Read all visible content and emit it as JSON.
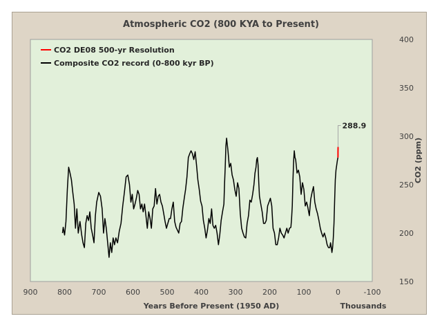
{
  "chart_data": {
    "type": "line",
    "title": "Atmospheric CO2 (800 KYA to Present)",
    "xlabel": "Years Before Present (1950 AD)",
    "x_unit_note": "Thousands",
    "ylabel": "CO2 (ppm)",
    "xlim": [
      900,
      -100
    ],
    "ylim": [
      150,
      400
    ],
    "x_ticks": [
      "900",
      "800",
      "700",
      "600",
      "500",
      "400",
      "300",
      "200",
      "100",
      "0",
      "-100"
    ],
    "y_ticks": [
      "150",
      "200",
      "250",
      "300",
      "350",
      "400"
    ],
    "annotation": {
      "label": "288.9",
      "x": 0,
      "y": 288.9
    },
    "series": [
      {
        "name": "CO2 DE08 500-yr Resolution",
        "color": "#ff0000",
        "x": [
          0.4,
          0.3,
          0.2,
          0.1,
          0.0
        ],
        "y": [
          278,
          280,
          284,
          288,
          288.9
        ]
      },
      {
        "name": "Composite CO2 record (0-800 kyr BP)",
        "color": "#000000",
        "x": [
          806,
          804,
          800,
          796,
          792,
          788,
          784,
          780,
          776,
          772,
          768,
          764,
          760,
          755,
          750,
          746,
          742,
          738,
          734,
          730,
          726,
          722,
          718,
          714,
          710,
          706,
          700,
          695,
          690,
          686,
          682,
          678,
          674,
          670,
          666,
          662,
          658,
          654,
          650,
          645,
          640,
          635,
          630,
          625,
          620,
          615,
          610,
          606,
          602,
          598,
          594,
          590,
          586,
          582,
          578,
          574,
          570,
          566,
          562,
          558,
          554,
          550,
          546,
          542,
          538,
          534,
          530,
          526,
          522,
          518,
          514,
          510,
          506,
          502,
          498,
          494,
          490,
          486,
          482,
          478,
          474,
          470,
          466,
          462,
          458,
          454,
          450,
          446,
          442,
          438,
          434,
          430,
          426,
          422,
          418,
          414,
          410,
          406,
          402,
          398,
          394,
          390,
          386,
          382,
          378,
          374,
          370,
          366,
          362,
          358,
          354,
          350,
          346,
          342,
          338,
          334,
          332,
          330,
          328,
          326,
          322,
          318,
          314,
          310,
          306,
          302,
          298,
          294,
          290,
          286,
          282,
          278,
          274,
          270,
          266,
          262,
          258,
          254,
          250,
          246,
          243,
          240,
          238,
          236,
          234,
          232,
          230,
          226,
          222,
          218,
          214,
          210,
          206,
          202,
          198,
          194,
          190,
          186,
          182,
          178,
          174,
          170,
          166,
          162,
          158,
          154,
          150,
          146,
          142,
          138,
          136,
          134,
          132,
          130,
          128,
          126,
          124,
          120,
          116,
          112,
          108,
          104,
          100,
          96,
          92,
          88,
          84,
          80,
          76,
          72,
          68,
          64,
          60,
          56,
          52,
          48,
          44,
          40,
          36,
          32,
          28,
          24,
          22,
          20,
          18,
          16,
          14,
          12,
          10,
          8,
          6,
          4,
          2,
          0.5
        ],
        "y": [
          200,
          206,
          198,
          212,
          245,
          268,
          262,
          255,
          242,
          230,
          205,
          225,
          200,
          212,
          198,
          190,
          185,
          210,
          218,
          213,
          222,
          205,
          198,
          190,
          218,
          232,
          242,
          238,
          225,
          200,
          215,
          205,
          190,
          175,
          190,
          180,
          195,
          188,
          195,
          190,
          202,
          210,
          228,
          242,
          258,
          260,
          250,
          232,
          240,
          225,
          230,
          236,
          244,
          240,
          225,
          230,
          222,
          230,
          218,
          205,
          222,
          215,
          205,
          225,
          228,
          246,
          230,
          238,
          240,
          232,
          228,
          220,
          212,
          205,
          210,
          215,
          215,
          225,
          232,
          212,
          206,
          203,
          200,
          210,
          212,
          226,
          236,
          245,
          258,
          278,
          282,
          285,
          282,
          276,
          284,
          270,
          255,
          245,
          233,
          228,
          213,
          205,
          195,
          203,
          215,
          210,
          225,
          208,
          205,
          208,
          200,
          188,
          198,
          213,
          222,
          230,
          252,
          268,
          290,
          298,
          285,
          268,
          272,
          260,
          255,
          245,
          238,
          252,
          246,
          220,
          205,
          200,
          196,
          195,
          210,
          218,
          234,
          232,
          240,
          250,
          262,
          268,
          276,
          278,
          270,
          252,
          238,
          230,
          222,
          210,
          210,
          213,
          228,
          232,
          236,
          228,
          205,
          200,
          188,
          188,
          195,
          205,
          200,
          198,
          195,
          200,
          205,
          200,
          205,
          206,
          215,
          228,
          255,
          275,
          285,
          278,
          276,
          262,
          265,
          258,
          240,
          252,
          245,
          228,
          232,
          226,
          218,
          235,
          242,
          248,
          232,
          225,
          220,
          213,
          205,
          200,
          196,
          200,
          195,
          188,
          185,
          185,
          190,
          186,
          180,
          185,
          195,
          210,
          235,
          255,
          265,
          270,
          275,
          278
        ]
      }
    ]
  }
}
